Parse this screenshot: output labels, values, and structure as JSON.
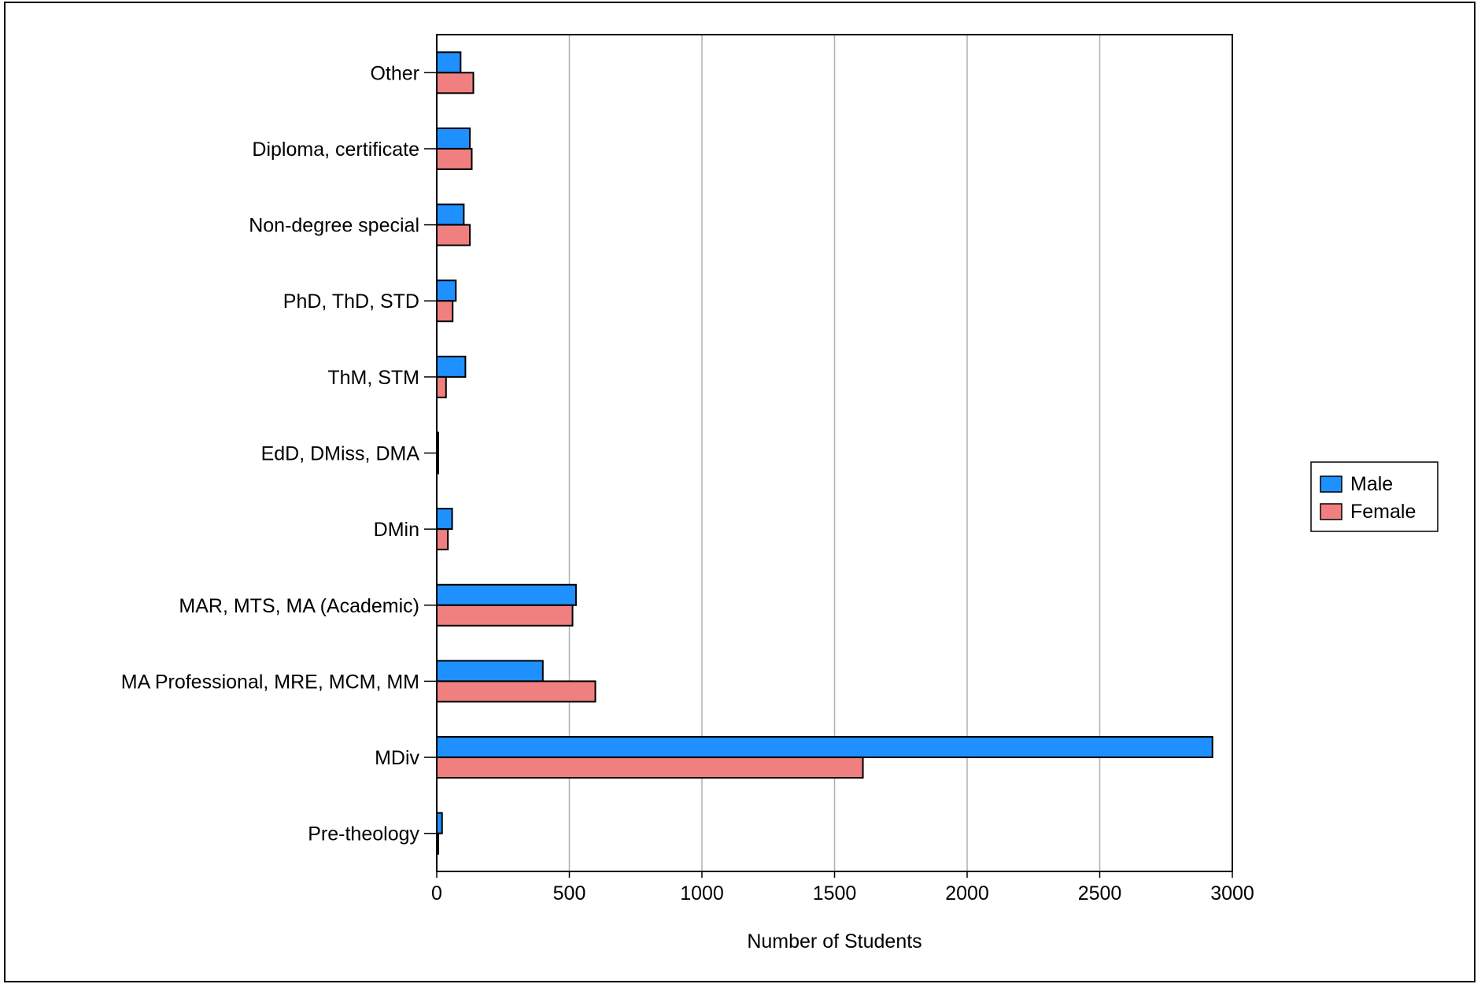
{
  "chart_data": {
    "type": "bar",
    "orientation": "horizontal",
    "title": "",
    "xlabel": "Number of Students",
    "ylabel": "",
    "xlim": [
      0,
      3000
    ],
    "x_ticks": [
      0,
      500,
      1000,
      1500,
      2000,
      2500,
      3000
    ],
    "x_tick_labels": [
      "0",
      "500",
      "1000",
      "1500",
      "2000",
      "2500",
      "3000"
    ],
    "grid": "vertical",
    "legend_position": "right",
    "categories": [
      "Other",
      "Diploma, certificate",
      "Non-degree special",
      "PhD, ThD, STD",
      "ThM, STM",
      "EdD, DMiss, DMA",
      "DMin",
      "MAR, MTS, MA (Academic)",
      "MA Professional, MRE, MCM, MM",
      "MDiv",
      "Pre-theology"
    ],
    "series": [
      {
        "name": "Male",
        "color": "#1e90ff",
        "values": [
          90,
          125,
          102,
          72,
          108,
          2,
          58,
          525,
          400,
          2925,
          20
        ]
      },
      {
        "name": "Female",
        "color": "#f08080",
        "values": [
          138,
          132,
          125,
          60,
          35,
          4,
          42,
          512,
          598,
          1607,
          6
        ]
      }
    ]
  }
}
